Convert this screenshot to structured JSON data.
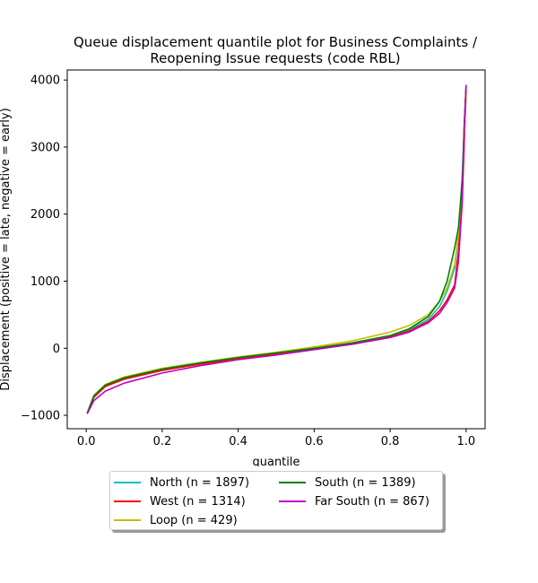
{
  "chart_data": {
    "type": "line",
    "title_line1": "Queue displacement quantile plot for Business Complaints /",
    "title_line2": "Reopening Issue  requests (code RBL)",
    "xlabel": "quantile",
    "ylabel": "Displacement (positive = late, negative = early)",
    "xlim": [
      -0.05,
      1.05
    ],
    "ylim": [
      -1200,
      4150
    ],
    "xticks": [
      0.0,
      0.2,
      0.4,
      0.6,
      0.8,
      1.0
    ],
    "xtick_labels": [
      "0.0",
      "0.2",
      "0.4",
      "0.6",
      "0.8",
      "1.0"
    ],
    "yticks": [
      -1000,
      0,
      1000,
      2000,
      3000,
      4000
    ],
    "ytick_labels": [
      "−1000",
      "0",
      "1000",
      "2000",
      "3000",
      "4000"
    ],
    "grid": false,
    "legend_position": "below the plot, two columns",
    "x": [
      0.003,
      0.02,
      0.05,
      0.1,
      0.2,
      0.3,
      0.4,
      0.5,
      0.6,
      0.7,
      0.8,
      0.85,
      0.9,
      0.93,
      0.95,
      0.97,
      0.98,
      0.99,
      0.995,
      1.0
    ],
    "series": [
      {
        "name": "North (n = 1897)",
        "color": "#00bfbf",
        "values": [
          -960,
          -720,
          -560,
          -450,
          -320,
          -230,
          -150,
          -80,
          -10,
          70,
          180,
          270,
          430,
          620,
          850,
          1200,
          1700,
          2600,
          3300,
          3900
        ]
      },
      {
        "name": "West (n = 1314)",
        "color": "#ff0000",
        "values": [
          -960,
          -730,
          -570,
          -460,
          -330,
          -235,
          -160,
          -90,
          -15,
          60,
          170,
          255,
          400,
          560,
          720,
          950,
          1450,
          2300,
          3000,
          3850
        ]
      },
      {
        "name": "Loop (n = 429)",
        "color": "#bfbf00",
        "values": [
          -950,
          -700,
          -540,
          -430,
          -300,
          -210,
          -130,
          -60,
          20,
          110,
          240,
          340,
          500,
          700,
          900,
          1250,
          1700,
          2500,
          3100,
          3800
        ]
      },
      {
        "name": "South (n = 1389)",
        "color": "#008000",
        "values": [
          -960,
          -710,
          -550,
          -440,
          -310,
          -220,
          -140,
          -70,
          0,
          80,
          190,
          290,
          470,
          700,
          1000,
          1500,
          1800,
          2500,
          3300,
          3900
        ]
      },
      {
        "name": "Far South (n = 867)",
        "color": "#bf00bf",
        "values": [
          -970,
          -780,
          -640,
          -520,
          -370,
          -260,
          -170,
          -100,
          -20,
          60,
          160,
          240,
          380,
          520,
          680,
          900,
          1300,
          2200,
          3300,
          3920
        ]
      }
    ]
  }
}
